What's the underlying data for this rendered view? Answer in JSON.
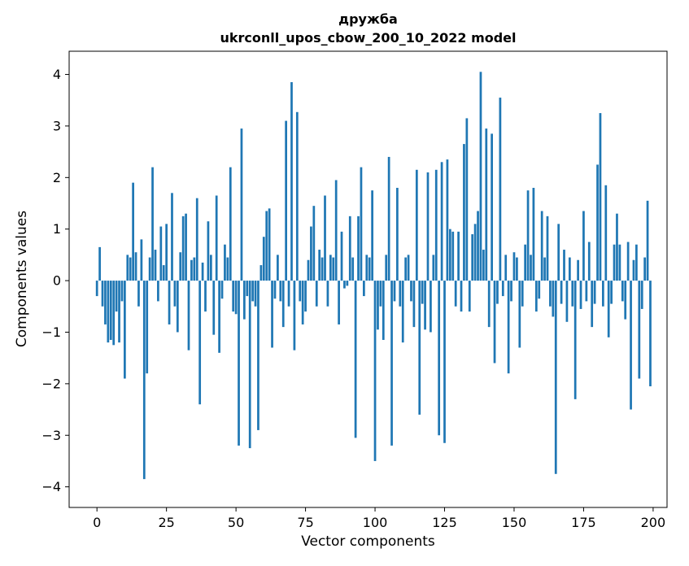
{
  "figure": {
    "title_line1": "дружба",
    "title_line2": "ukrconll_upos_cbow_200_10_2022 model",
    "xlabel": "Vector components",
    "ylabel": "Components values"
  },
  "chart_data": {
    "type": "bar",
    "title": "дружба — ukrconll_upos_cbow_200_10_2022 model",
    "xlabel": "Vector components",
    "ylabel": "Components values",
    "n_components": 200,
    "x_start": 0,
    "values": [
      -0.3,
      0.65,
      -0.5,
      -0.85,
      -1.2,
      -1.15,
      -1.25,
      -0.6,
      -1.2,
      -0.4,
      -1.9,
      0.5,
      0.45,
      1.9,
      0.55,
      -0.5,
      0.8,
      -3.85,
      -1.8,
      0.45,
      2.2,
      0.6,
      -0.4,
      1.05,
      0.3,
      1.1,
      -0.85,
      1.7,
      -0.5,
      -1.0,
      0.55,
      1.25,
      1.3,
      -1.35,
      0.4,
      0.45,
      1.6,
      -2.4,
      0.35,
      -0.6,
      1.15,
      0.5,
      -1.05,
      1.65,
      -1.4,
      -0.35,
      0.7,
      0.45,
      2.2,
      -0.6,
      -0.65,
      -3.2,
      2.95,
      -0.75,
      -0.3,
      -3.25,
      -0.4,
      -0.5,
      -2.9,
      0.3,
      0.85,
      1.35,
      1.4,
      -1.3,
      -0.35,
      0.5,
      -0.4,
      -0.9,
      3.1,
      -0.5,
      3.85,
      -1.35,
      3.27,
      -0.4,
      -0.85,
      -0.6,
      0.4,
      1.05,
      1.45,
      -0.5,
      0.6,
      0.45,
      1.65,
      -0.5,
      0.5,
      0.45,
      1.95,
      -0.85,
      0.95,
      -0.15,
      -0.1,
      1.25,
      0.45,
      -3.05,
      1.25,
      2.2,
      -0.3,
      0.5,
      0.45,
      1.75,
      -3.5,
      -0.95,
      -0.5,
      -1.15,
      0.5,
      2.4,
      -3.2,
      -0.4,
      1.8,
      -0.5,
      -1.2,
      0.45,
      0.5,
      -0.4,
      -0.9,
      2.15,
      -2.6,
      -0.45,
      -0.95,
      2.1,
      -1.0,
      0.5,
      2.15,
      -3.0,
      2.3,
      -3.15,
      2.35,
      1.0,
      0.95,
      -0.5,
      0.95,
      -0.6,
      2.65,
      3.15,
      -0.6,
      0.9,
      1.1,
      1.35,
      4.05,
      0.6,
      2.95,
      -0.9,
      2.85,
      -1.6,
      -0.45,
      3.55,
      -0.3,
      0.5,
      -1.8,
      -0.4,
      0.55,
      0.45,
      -1.3,
      -0.5,
      0.7,
      1.75,
      0.5,
      1.8,
      -0.6,
      -0.35,
      1.35,
      0.45,
      1.25,
      -0.5,
      -0.7,
      -3.75,
      1.1,
      -0.45,
      0.6,
      -0.8,
      0.45,
      -0.5,
      -2.3,
      0.4,
      -0.55,
      1.35,
      -0.4,
      0.75,
      -0.9,
      -0.45,
      2.25,
      3.25,
      -0.5,
      1.85,
      -1.1,
      -0.45,
      0.7,
      1.3,
      0.7,
      -0.4,
      -0.75,
      0.75,
      -2.5,
      0.4,
      0.7,
      -1.9,
      -0.55,
      0.45,
      1.55,
      -2.05
    ],
    "xlim": [
      -10,
      205
    ],
    "ylim": [
      -4.4,
      4.45
    ],
    "xticks": [
      0,
      25,
      50,
      75,
      100,
      125,
      150,
      175,
      200
    ],
    "yticks": [
      -4,
      -3,
      -2,
      -1,
      0,
      1,
      2,
      3,
      4
    ],
    "bar_width": 0.8,
    "bar_color": "#1f77b4",
    "axis_color": "#000000",
    "grid": false,
    "legend": "none"
  }
}
